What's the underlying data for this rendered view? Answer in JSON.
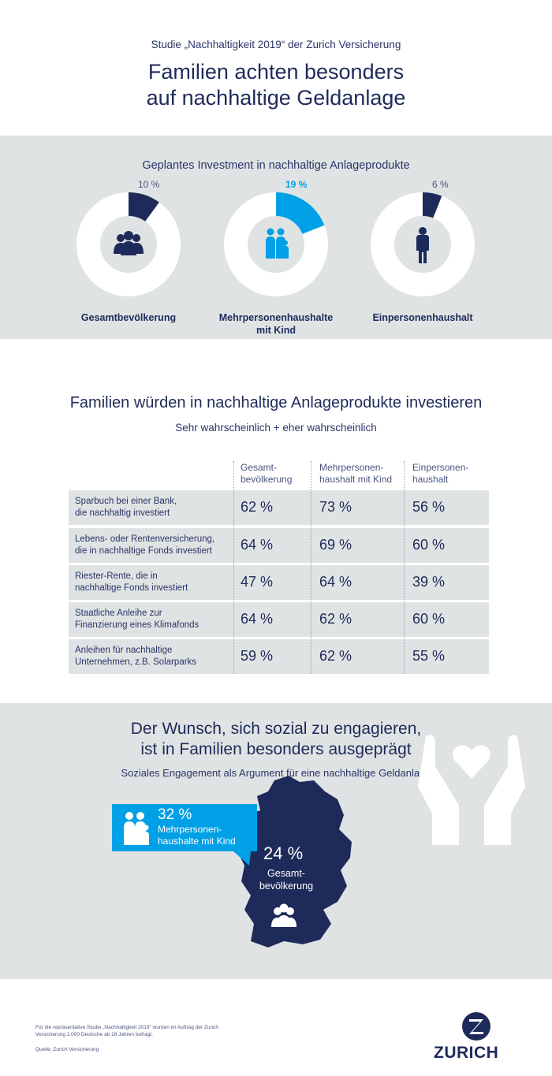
{
  "header": {
    "subtitle": "Studie „Nachhaltigkeit 2019“ der Zurich Versicherung",
    "title_line1": "Familien achten besonders",
    "title_line2": "auf nachhaltige Geldanlage"
  },
  "donuts": {
    "heading": "Geplantes Investment in nachhaltige Anlageprodukte"
  },
  "chart_data": [
    {
      "type": "pie",
      "title": "Geplantes Investment in nachhaltige Anlageprodukte",
      "series": [
        {
          "name": "Gesamtbevölkerung",
          "value": 10,
          "value_label": "10 %",
          "color": "#1e2a5a",
          "icon": "group-icon"
        },
        {
          "name": "Mehrpersonenhaushalte mit Kind",
          "value": 19,
          "value_label": "19 %",
          "color": "#00a0e6",
          "icon": "family-icon"
        },
        {
          "name": "Einpersonenhaushalt",
          "value": 6,
          "value_label": "6 %",
          "color": "#1e2a5a",
          "icon": "person-icon"
        }
      ]
    },
    {
      "type": "table",
      "title": "Familien würden in nachhaltige Anlageprodukte investieren",
      "subtitle": "Sehr wahrscheinlich + eher wahrscheinlich",
      "columns": [
        "Gesamt-\nbevölkerung",
        "Mehrpersonen-\nhaushalt mit Kind",
        "Einpersonen-\nhaushalt"
      ],
      "rows": [
        {
          "label": "Sparbuch bei einer Bank,\ndie nachhaltig investiert",
          "values": [
            "62 %",
            "73 %",
            "56 %"
          ]
        },
        {
          "label": "Lebens- oder Rentenversicherung,\ndie in nachhaltige Fonds investiert",
          "values": [
            "64 %",
            "69 %",
            "60 %"
          ]
        },
        {
          "label": "Riester-Rente, die in\nnachhaltige Fonds investiert",
          "values": [
            "47 %",
            "64 %",
            "39 %"
          ]
        },
        {
          "label": "Staatliche Anleihe zur\nFinanzierung eines Klimafonds",
          "values": [
            "64 %",
            "62 %",
            "60 %"
          ]
        },
        {
          "label": "Anleihen für nachhaltige\nUnternehmen, z.B. Solarparks",
          "values": [
            "59 %",
            "62 %",
            "55 %"
          ]
        }
      ]
    }
  ],
  "social": {
    "title_line1": "Der Wunsch, sich sozial zu engagieren,",
    "title_line2": "ist in Familien besonders ausgeprägt",
    "subtitle": "Soziales Engagement als Argument für eine nachhaltige Geldanlage",
    "callout_pct": "32 %",
    "callout_label": "Mehrpersonen-\nhaushalte mit Kind",
    "map_pct": "24 %",
    "map_label": "Gesamt-\nbevölkerung",
    "callout_color": "#00a0e6",
    "map_color": "#1e2a5a"
  },
  "footer": {
    "note": "Für die repräsentative Studie „Nachhaltigkeit 2019“ wurden im Auftrag der Zurich Versicherung 1.000 Deutsche ab 18 Jahren befragt.",
    "source": "Quelle: Zurich Versicherung",
    "brand": "ZURICH"
  }
}
